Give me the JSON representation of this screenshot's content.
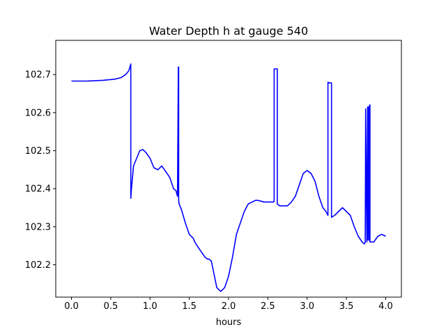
{
  "chart_data": {
    "type": "line",
    "title": "Water Depth h at gauge 540",
    "xlabel": "hours",
    "ylabel": "",
    "xlim": [
      -0.2,
      4.2
    ],
    "ylim": [
      102.115,
      102.79
    ],
    "xticks": [
      0.0,
      0.5,
      1.0,
      1.5,
      2.0,
      2.5,
      3.0,
      3.5,
      4.0
    ],
    "xtick_labels": [
      "0.0",
      "0.5",
      "1.0",
      "1.5",
      "2.0",
      "2.5",
      "3.0",
      "3.5",
      "4.0"
    ],
    "yticks": [
      102.2,
      102.3,
      102.4,
      102.5,
      102.6,
      102.7
    ],
    "ytick_labels": [
      "102.2",
      "102.3",
      "102.4",
      "102.5",
      "102.6",
      "102.7"
    ],
    "grid": false,
    "series": [
      {
        "color": "#0000ff",
        "x": [
          0.0,
          0.2,
          0.4,
          0.55,
          0.63,
          0.69,
          0.73,
          0.755,
          0.755,
          0.76,
          0.79,
          0.83,
          0.87,
          0.91,
          0.95,
          1.0,
          1.05,
          1.1,
          1.15,
          1.2,
          1.25,
          1.3,
          1.33,
          1.35,
          1.36,
          1.365,
          1.365,
          1.37,
          1.4,
          1.45,
          1.5,
          1.55,
          1.57,
          1.6,
          1.65,
          1.7,
          1.73,
          1.75,
          1.78,
          1.8,
          1.85,
          1.9,
          1.95,
          2.0,
          2.05,
          2.1,
          2.15,
          2.2,
          2.25,
          2.3,
          2.35,
          2.4,
          2.45,
          2.5,
          2.55,
          2.575,
          2.58,
          2.58,
          2.6,
          2.62,
          2.62,
          2.65,
          2.7,
          2.75,
          2.8,
          2.85,
          2.9,
          2.95,
          3.0,
          3.05,
          3.1,
          3.15,
          3.2,
          3.24,
          3.265,
          3.265,
          3.28,
          3.31,
          3.31,
          3.35,
          3.4,
          3.45,
          3.5,
          3.55,
          3.6,
          3.65,
          3.7,
          3.73,
          3.74,
          3.745,
          3.76,
          3.77,
          3.775,
          3.78,
          3.79,
          3.795,
          3.8,
          3.8,
          3.85,
          3.9,
          3.95,
          4.0
        ],
        "y": [
          102.683,
          102.683,
          102.685,
          102.688,
          102.692,
          102.7,
          102.71,
          102.728,
          102.375,
          102.39,
          102.46,
          102.48,
          102.5,
          102.503,
          102.495,
          102.48,
          102.455,
          102.45,
          102.46,
          102.445,
          102.43,
          102.4,
          102.395,
          102.38,
          102.72,
          102.72,
          102.37,
          102.36,
          102.345,
          102.31,
          102.28,
          102.27,
          102.26,
          102.25,
          102.235,
          102.22,
          102.215,
          102.215,
          102.21,
          102.19,
          102.14,
          102.13,
          102.14,
          102.17,
          102.22,
          102.28,
          102.31,
          102.34,
          102.36,
          102.365,
          102.37,
          102.368,
          102.365,
          102.365,
          102.365,
          102.365,
          102.37,
          102.715,
          102.715,
          102.715,
          102.36,
          102.355,
          102.355,
          102.355,
          102.365,
          102.38,
          102.41,
          102.44,
          102.448,
          102.44,
          102.42,
          102.38,
          102.35,
          102.34,
          102.33,
          102.68,
          102.678,
          102.678,
          102.325,
          102.33,
          102.34,
          102.35,
          102.34,
          102.33,
          102.3,
          102.275,
          102.26,
          102.255,
          102.26,
          102.61,
          102.26,
          102.615,
          102.265,
          102.615,
          102.265,
          102.62,
          102.62,
          102.26,
          102.26,
          102.275,
          102.28,
          102.275
        ]
      }
    ]
  }
}
